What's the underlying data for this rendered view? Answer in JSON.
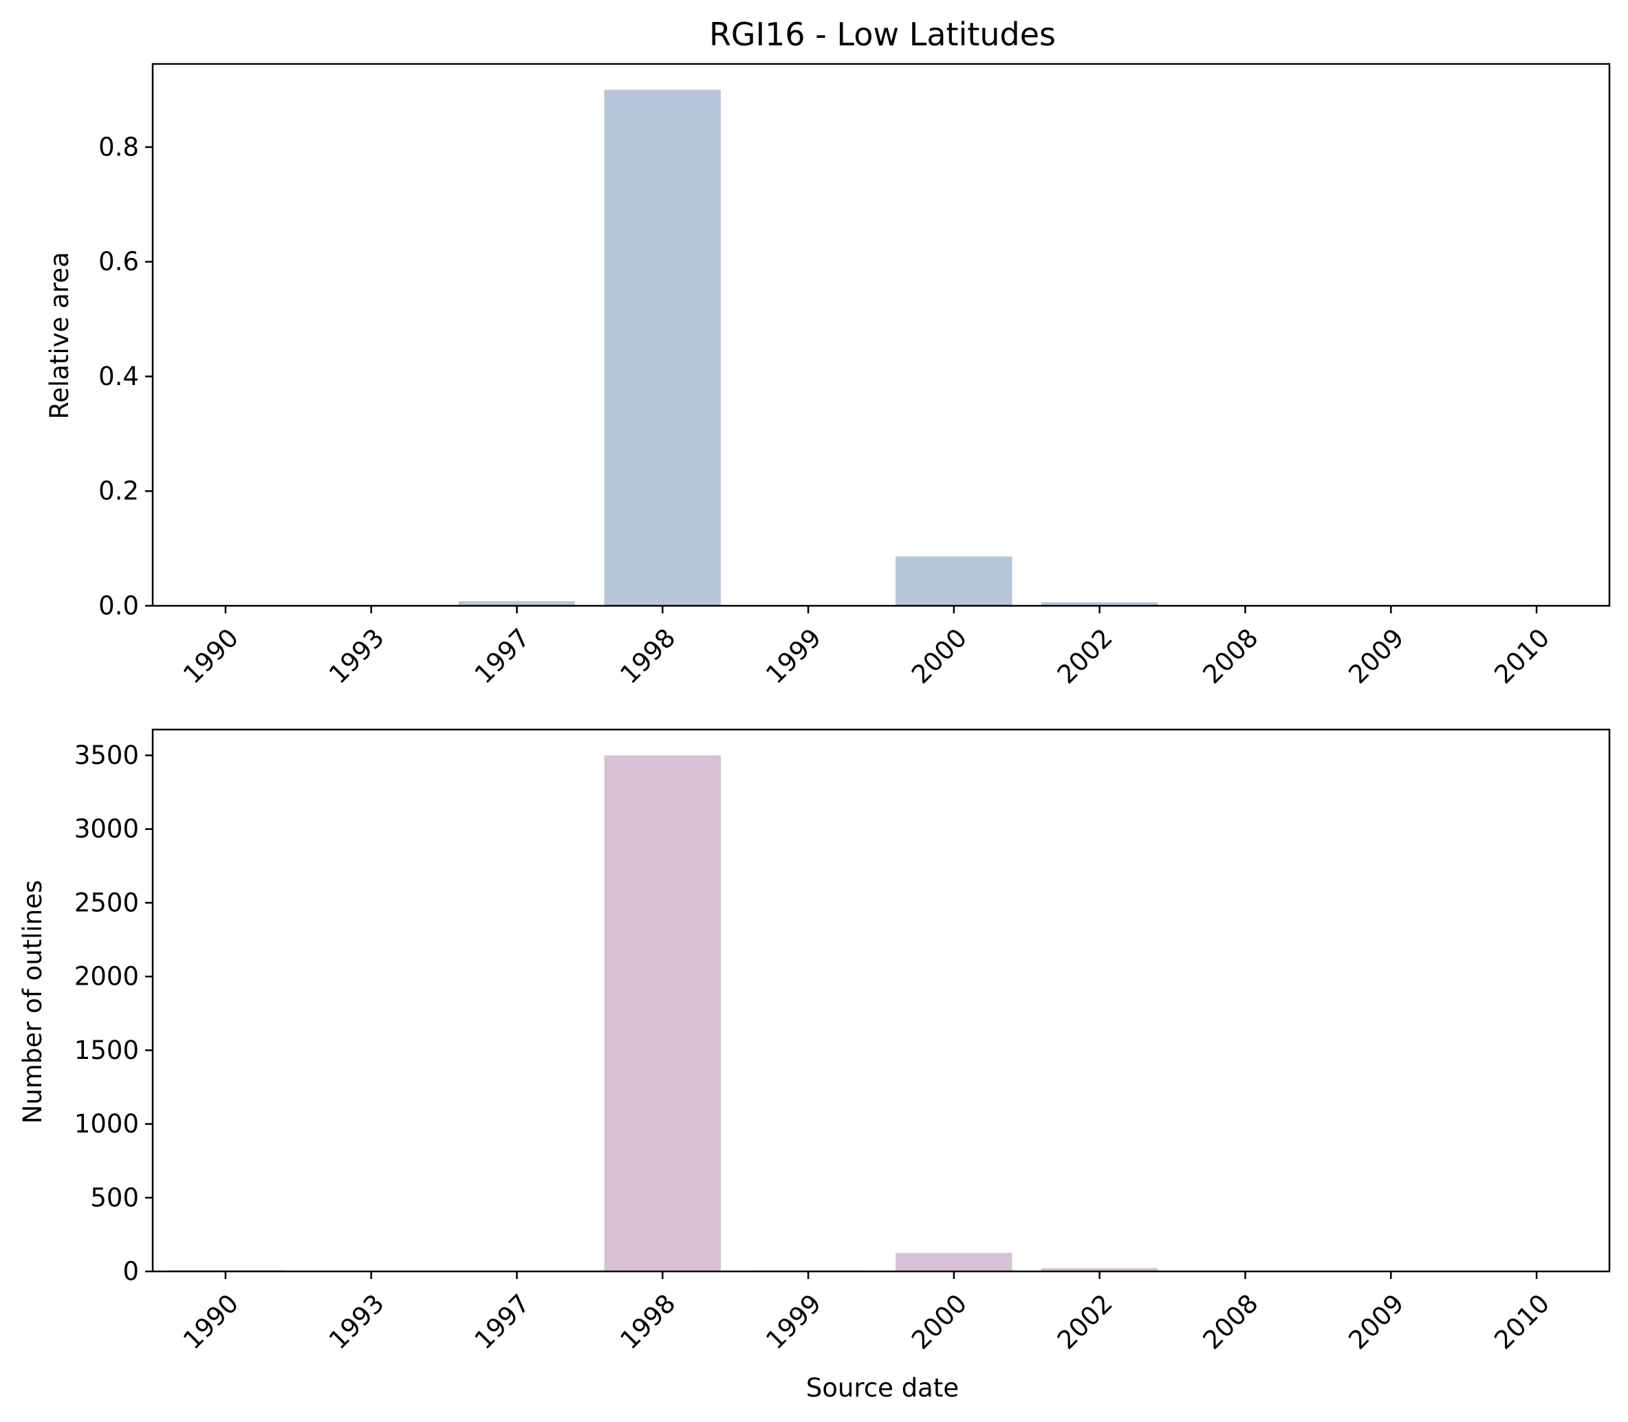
{
  "figure": {
    "title": "RGI16 - Low Latitudes"
  },
  "chart_data": [
    {
      "type": "bar",
      "title": "RGI16 - Low Latitudes",
      "xlabel": "",
      "ylabel": "Relative area",
      "categories": [
        "1990",
        "1993",
        "1997",
        "1998",
        "1999",
        "2000",
        "2002",
        "2008",
        "2009",
        "2010"
      ],
      "values": [
        0.0005,
        0.0003,
        0.008,
        0.9,
        0.0003,
        0.086,
        0.006,
        0.0002,
        0.0003,
        0.0002
      ],
      "ylim": [
        0,
        0.945
      ],
      "yticks": [
        0.0,
        0.2,
        0.4,
        0.6,
        0.8
      ],
      "ytick_labels": [
        "0.0",
        "0.2",
        "0.4",
        "0.6",
        "0.8"
      ],
      "color": "#b6c5d7",
      "grid": false,
      "legend": "none"
    },
    {
      "type": "bar",
      "title": "",
      "xlabel": "Source date",
      "ylabel": "Number of outlines",
      "categories": [
        "1990",
        "1993",
        "1997",
        "1998",
        "1999",
        "2000",
        "2002",
        "2008",
        "2009",
        "2010"
      ],
      "values": [
        8,
        4,
        2,
        3500,
        6,
        125,
        22,
        2,
        4,
        1
      ],
      "ylim": [
        0,
        3675
      ],
      "yticks": [
        0,
        500,
        1000,
        1500,
        2000,
        2500,
        3000,
        3500
      ],
      "ytick_labels": [
        "0",
        "500",
        "1000",
        "1500",
        "2000",
        "2500",
        "3000",
        "3500"
      ],
      "color": "#d6c1d5",
      "grid": false,
      "legend": "none"
    }
  ]
}
